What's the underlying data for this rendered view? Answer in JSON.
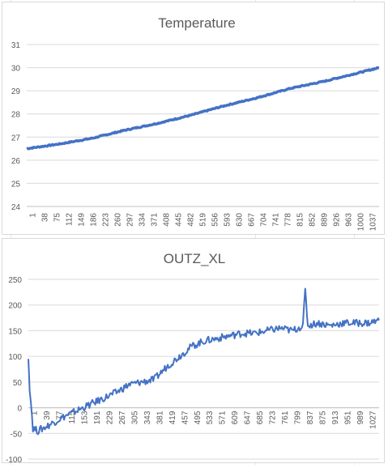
{
  "chart_data": [
    {
      "type": "line",
      "title": "Temperature",
      "xlabel": "",
      "ylabel": "",
      "ylim": [
        24,
        31
      ],
      "yticks": [
        24,
        25,
        26,
        27,
        28,
        29,
        30,
        31
      ],
      "x_count": 1070,
      "x_tick_labels": [
        "1",
        "38",
        "75",
        "112",
        "149",
        "186",
        "223",
        "260",
        "297",
        "334",
        "371",
        "408",
        "445",
        "482",
        "519",
        "556",
        "593",
        "630",
        "667",
        "704",
        "741",
        "778",
        "815",
        "852",
        "889",
        "926",
        "963",
        "1000",
        "1037"
      ],
      "grid": true,
      "series_color": "#4472c4",
      "series": [
        {
          "x": [
            1,
            100,
            200,
            300,
            400,
            500,
            600,
            700,
            800,
            900,
            1000,
            1070
          ],
          "values": [
            26.5,
            26.7,
            26.95,
            27.3,
            27.6,
            27.95,
            28.35,
            28.7,
            29.1,
            29.4,
            29.75,
            30.0
          ]
        }
      ]
    },
    {
      "type": "line",
      "title": "OUTZ_XL",
      "xlabel": "",
      "ylabel": "",
      "ylim": [
        -100,
        250
      ],
      "yticks": [
        -100,
        -50,
        0,
        50,
        100,
        150,
        200,
        250
      ],
      "x_count": 1060,
      "x_tick_labels": [
        "1",
        "39",
        "77",
        "115",
        "153",
        "191",
        "229",
        "267",
        "305",
        "343",
        "381",
        "419",
        "457",
        "495",
        "533",
        "571",
        "609",
        "647",
        "685",
        "723",
        "761",
        "799",
        "837",
        "875",
        "913",
        "951",
        "989",
        "1027"
      ],
      "grid": true,
      "series_color": "#4472c4",
      "series": [
        {
          "x": [
            1,
            5,
            15,
            30,
            60,
            100,
            150,
            200,
            267,
            305,
            343,
            381,
            419,
            457,
            495,
            533,
            571,
            609,
            647,
            685,
            723,
            761,
            799,
            830,
            837,
            845,
            875,
            913,
            951,
            989,
            1027,
            1060
          ],
          "values": [
            95,
            40,
            -40,
            -45,
            -35,
            -20,
            -5,
            10,
            30,
            45,
            50,
            55,
            80,
            100,
            120,
            130,
            135,
            140,
            145,
            145,
            150,
            155,
            150,
            160,
            228,
            160,
            165,
            160,
            165,
            165,
            165,
            170
          ]
        }
      ]
    }
  ]
}
